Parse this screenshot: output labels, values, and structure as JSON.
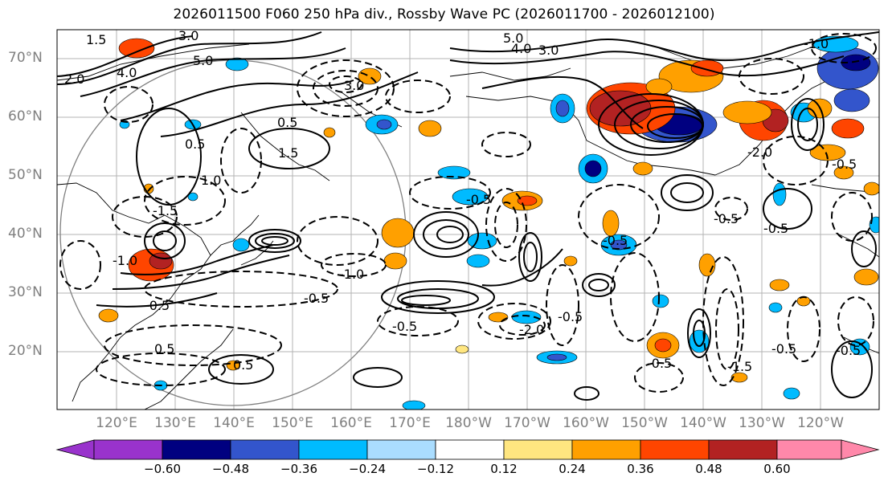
{
  "map": {
    "title": "2026011500 F060 250 hPa div., Rossby Wave PC (2026011700 - 2026012100)",
    "lat_labels": [
      "70°N",
      "60°N",
      "50°N",
      "40°N",
      "30°N",
      "20°N"
    ],
    "lon_labels": [
      "120°E",
      "130°E",
      "140°E",
      "150°E",
      "160°E",
      "170°E",
      "180°W",
      "170°W",
      "160°W",
      "150°W",
      "140°W",
      "130°W",
      "120°W"
    ],
    "contour_labels": [
      "3.0",
      "1.5",
      "5.0",
      "4.0",
      "3.0",
      "2.0",
      "4.0",
      "5.0",
      "3.0",
      "0.5",
      "1.0",
      "0.5",
      "0.5",
      "1.5",
      "-1.0",
      "-0.5",
      "-1.0",
      "-0.5",
      "-1.5",
      "-0.5",
      "-0.5",
      "-2.0",
      "-0.5",
      "0.5",
      "-0.5",
      "-1.5",
      "-0.5",
      "-2.0",
      "-0.5",
      "-0.5",
      "-0.5",
      "-0.5",
      "-0.5",
      "-1.0"
    ]
  },
  "colorbar": {
    "tick_labels": [
      "−0.60",
      "−0.48",
      "−0.36",
      "−0.24",
      "−0.12",
      "0.12",
      "0.24",
      "0.36",
      "0.48",
      "0.60"
    ],
    "colors": [
      "#9933cc",
      "#000080",
      "#3355cc",
      "#00bbff",
      "#aaddff",
      "#ffffff",
      "#ffe680",
      "#ffa000",
      "#ff4500",
      "#b22222",
      "#ff88aa"
    ],
    "min_extend_color": "#9933cc",
    "max_extend_color": "#ff88aa"
  },
  "colors": {
    "blue_fill": "#00bbff",
    "dark_blue_fill": "#000080",
    "mid_blue_fill": "#3355cc",
    "orange_fill": "#ffa000",
    "red_fill": "#ff4500",
    "dark_red_fill": "#b22222",
    "yellow_fill": "#ffe680",
    "grid": "#b0b0b0",
    "coast": "#000000"
  }
}
